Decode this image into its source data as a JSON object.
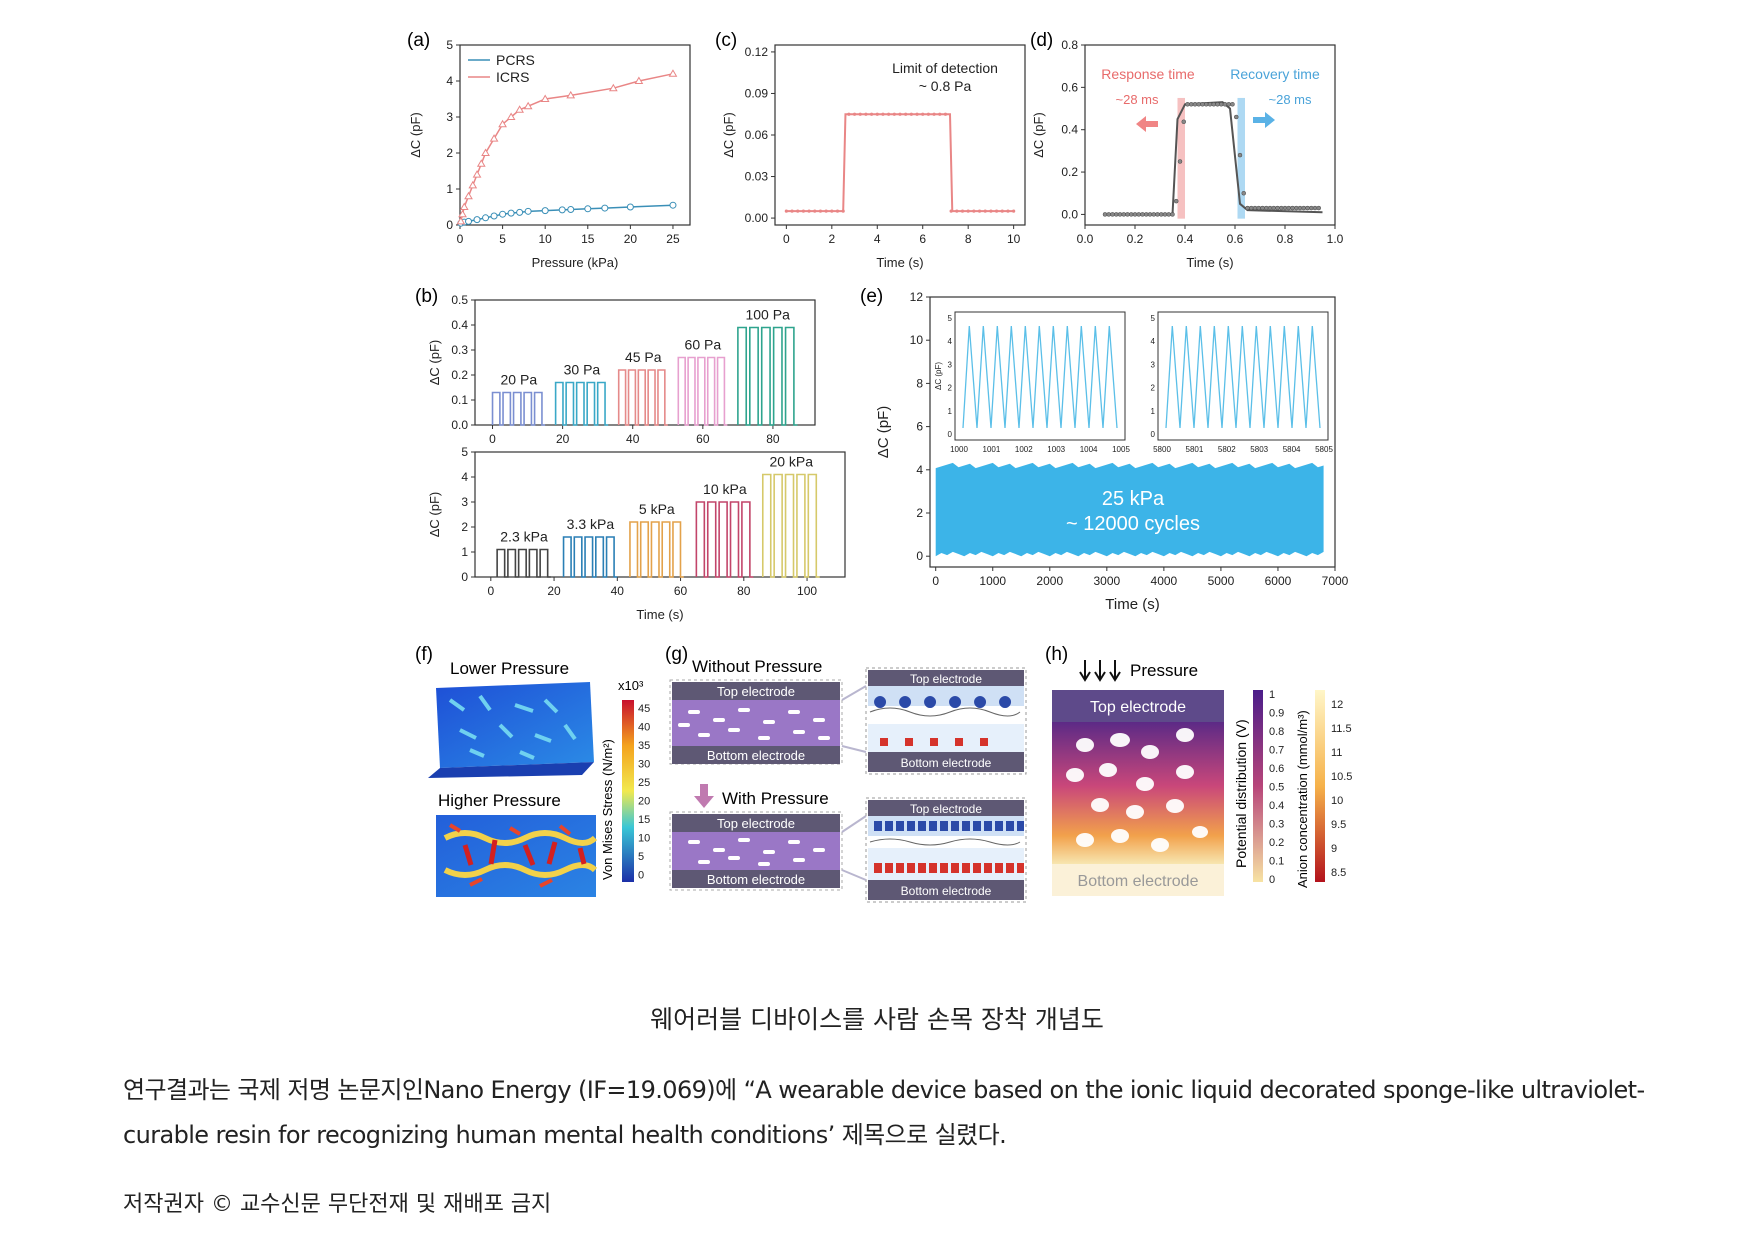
{
  "panel_labels": {
    "a": "(a)",
    "b": "(b)",
    "c": "(c)",
    "d": "(d)",
    "e": "(e)",
    "f": "(f)",
    "g": "(g)",
    "h": "(h)"
  },
  "chart_data": [
    {
      "id": "a",
      "type": "line",
      "xlabel": "Pressure (kPa)",
      "ylabel": "ΔC (pF)",
      "xlim": [
        0,
        27
      ],
      "ylim": [
        0,
        5
      ],
      "x_ticks": [
        "0",
        "5",
        "10",
        "15",
        "20",
        "25"
      ],
      "y_ticks": [
        "0",
        "1",
        "2",
        "3",
        "4",
        "5"
      ],
      "legend_position": "top-left",
      "series": [
        {
          "name": "PCRS",
          "color": "#3a8fb7",
          "x": [
            0.1,
            0.5,
            1,
            2,
            3,
            4,
            5,
            6,
            7,
            8,
            10,
            12,
            13,
            15,
            17,
            20,
            25
          ],
          "y": [
            0.05,
            0.08,
            0.1,
            0.15,
            0.2,
            0.25,
            0.3,
            0.33,
            0.35,
            0.38,
            0.4,
            0.42,
            0.43,
            0.45,
            0.47,
            0.5,
            0.55
          ]
        },
        {
          "name": "ICRS",
          "color": "#e98686",
          "x": [
            0.1,
            0.3,
            0.5,
            1,
            1.5,
            2,
            2.5,
            3,
            4,
            5,
            6,
            7,
            8,
            10,
            13,
            18,
            21,
            25
          ],
          "y": [
            0.1,
            0.3,
            0.5,
            0.8,
            1.1,
            1.4,
            1.7,
            2.0,
            2.4,
            2.8,
            3.0,
            3.2,
            3.3,
            3.5,
            3.6,
            3.8,
            4.0,
            4.2
          ]
        }
      ]
    },
    {
      "id": "c",
      "type": "line",
      "xlabel": "Time (s)",
      "ylabel": "ΔC (pF)",
      "xlim": [
        -0.5,
        10.5
      ],
      "ylim": [
        -0.005,
        0.125
      ],
      "x_ticks": [
        "0",
        "2",
        "4",
        "6",
        "8",
        "10"
      ],
      "y_ticks": [
        "0.00",
        "0.03",
        "0.06",
        "0.09",
        "0.12"
      ],
      "annotation": [
        "Limit of detection",
        "~ 0.8 Pa"
      ],
      "series": [
        {
          "color": "#e98686",
          "x": [
            0,
            2.5,
            2.6,
            7.2,
            7.3,
            10
          ],
          "y": [
            0.005,
            0.005,
            0.075,
            0.075,
            0.005,
            0.005
          ]
        }
      ]
    },
    {
      "id": "d",
      "type": "line",
      "xlabel": "Time (s)",
      "ylabel": "ΔC (pF)",
      "xlim": [
        0,
        1.0
      ],
      "ylim": [
        -0.05,
        0.8
      ],
      "x_ticks": [
        "0.0",
        "0.2",
        "0.4",
        "0.6",
        "0.8",
        "1.0"
      ],
      "y_ticks": [
        "0.0",
        "0.2",
        "0.4",
        "0.6",
        "0.8"
      ],
      "response_label": "Response time",
      "response_value": "~28 ms",
      "recovery_label": "Recovery time",
      "recovery_value": "~28 ms",
      "series": [
        {
          "color": "#555555",
          "x": [
            0.08,
            0.35,
            0.37,
            0.4,
            0.55,
            0.58,
            0.62,
            0.65,
            0.95
          ],
          "y": [
            0.0,
            0.0,
            0.45,
            0.52,
            0.53,
            0.5,
            0.05,
            0.02,
            0.01
          ]
        }
      ]
    },
    {
      "id": "b_top",
      "type": "line",
      "ylabel": "ΔC (pF)",
      "xlim": [
        -5,
        92
      ],
      "ylim": [
        0,
        0.5
      ],
      "x_ticks": [
        "0",
        "20",
        "40",
        "60",
        "80"
      ],
      "y_ticks": [
        "0.0",
        "0.1",
        "0.2",
        "0.3",
        "0.4",
        "0.5"
      ],
      "segments": [
        {
          "label": "20 Pa",
          "color": "#7b8fd1",
          "start": 0,
          "end": 15,
          "value": 0.13
        },
        {
          "label": "30 Pa",
          "color": "#3aa8c7",
          "start": 18,
          "end": 33,
          "value": 0.17
        },
        {
          "label": "45 Pa",
          "color": "#e58a8a",
          "start": 36,
          "end": 50,
          "value": 0.22
        },
        {
          "label": "60 Pa",
          "color": "#e7a0cf",
          "start": 53,
          "end": 67,
          "value": 0.27
        },
        {
          "label": "100 Pa",
          "color": "#2ea48e",
          "start": 70,
          "end": 87,
          "value": 0.39
        }
      ]
    },
    {
      "id": "b_bottom",
      "type": "line",
      "xlabel": "Time (s)",
      "ylabel": "ΔC (pF)",
      "xlim": [
        -5,
        112
      ],
      "ylim": [
        0,
        5
      ],
      "x_ticks": [
        "0",
        "20",
        "40",
        "60",
        "80",
        "100"
      ],
      "y_ticks": [
        "0",
        "1",
        "2",
        "3",
        "4",
        "5"
      ],
      "segments": [
        {
          "label": "2.3 kPa",
          "color": "#444444",
          "start": 2,
          "end": 19,
          "value": 1.1
        },
        {
          "label": "3.3 kPa",
          "color": "#2a7fb5",
          "start": 23,
          "end": 40,
          "value": 1.6
        },
        {
          "label": "5 kPa",
          "color": "#e3a24b",
          "start": 44,
          "end": 61,
          "value": 2.2
        },
        {
          "label": "10 kPa",
          "color": "#c2456a",
          "start": 65,
          "end": 83,
          "value": 3.0
        },
        {
          "label": "20 kPa",
          "color": "#d6c96a",
          "start": 86,
          "end": 104,
          "value": 4.1
        }
      ]
    },
    {
      "id": "e",
      "type": "area",
      "xlabel": "Time (s)",
      "ylabel": "ΔC (pF)",
      "xlim": [
        -100,
        7000
      ],
      "ylim": [
        -0.5,
        12
      ],
      "x_ticks": [
        "0",
        "1000",
        "2000",
        "3000",
        "4000",
        "5000",
        "6000",
        "7000"
      ],
      "y_ticks": [
        "0",
        "2",
        "4",
        "6",
        "8",
        "10",
        "12"
      ],
      "band": {
        "start": 0,
        "end": 6800,
        "min": 0,
        "max": 4.2,
        "color": "#3cb4e8"
      },
      "annotation": [
        "25 kPa",
        "~ 12000 cycles"
      ],
      "insets": [
        {
          "x_ticks": [
            "1000",
            "1001",
            "1002",
            "1003",
            "1004",
            "1005"
          ],
          "y_ticks": [
            "0",
            "1",
            "2",
            "3",
            "4",
            "5"
          ],
          "ylabel": "ΔC (pF)",
          "cycles": 11
        },
        {
          "x_ticks": [
            "5800",
            "5801",
            "5802",
            "5803",
            "5804",
            "5805"
          ],
          "y_ticks": [
            "0",
            "1",
            "2",
            "3",
            "4",
            "5"
          ],
          "cycles": 11
        }
      ]
    }
  ],
  "panel_f": {
    "lower": "Lower Pressure",
    "higher": "Higher Pressure",
    "colorbar_exp": "x10³",
    "colorbar_label": "Von Mises Stress (N/m²)",
    "colorbar_ticks": [
      "45",
      "40",
      "35",
      "30",
      "25",
      "20",
      "15",
      "10",
      "5",
      "0"
    ]
  },
  "panel_g": {
    "without": "Without Pressure",
    "with": "With Pressure",
    "top": "Top electrode",
    "bottom": "Bottom electrode"
  },
  "panel_h": {
    "pressure": "Pressure",
    "top": "Top electrode",
    "bottom": "Bottom electrode",
    "potential_label": "Potential distribution (V)",
    "potential_ticks": [
      "1",
      "0.9",
      "0.8",
      "0.7",
      "0.6",
      "0.5",
      "0.4",
      "0.3",
      "0.2",
      "0.1",
      "0"
    ],
    "anion_label": "Anion concentration (mmol/m³)",
    "anion_ticks": [
      "12",
      "11.5",
      "11",
      "10.5",
      "10",
      "9.5",
      "9",
      "8.5"
    ]
  },
  "caption": "웨어러블 디바이스를 사람 손목 장착 개념도",
  "body_line1": "연구결과는 국제 저명 논문지인Nano Energy (IF=19.069)에 “A wearable device based on the ionic liquid decorated sponge-like ultraviolet-",
  "body_line2": "curable resin for recognizing human mental health conditions’ 제목으로 실렸다.",
  "copyright": "저작권자 © 교수신문 무단전재 및 재배포 금지"
}
